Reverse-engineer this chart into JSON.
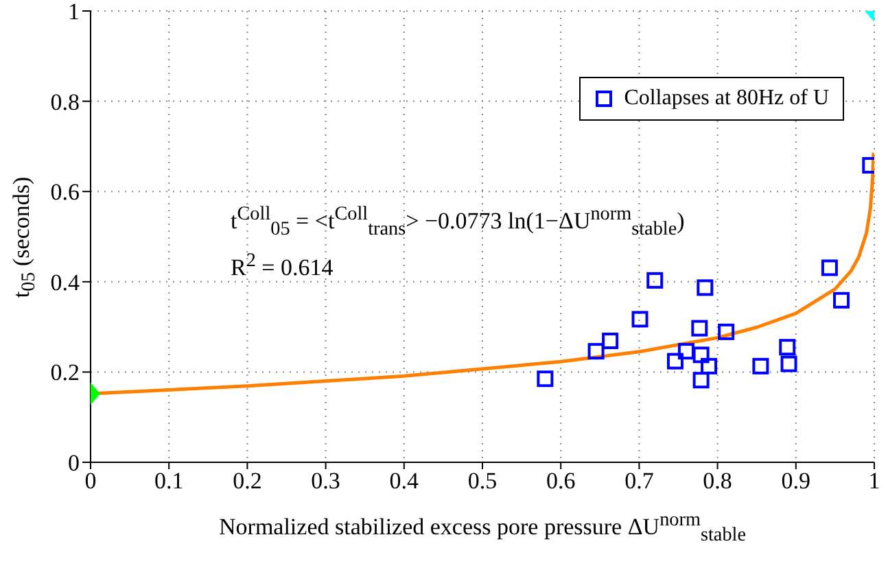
{
  "chart_data": {
    "type": "scatter",
    "xlabel": "Normalized stabilized excess pore pressure ΔU$^{norm}$$_{stable}$",
    "ylabel": "t$_{05}$ (seconds)",
    "annotations": [
      "t$^{Coll}$$_{05}$ = <t$^{Coll}$$_{trans}$> −0.0773 ln(1−ΔU$^{norm}$$_{stable}$)",
      "R$^{2}$ = 0.614"
    ],
    "xlim": [
      0,
      1
    ],
    "ylim": [
      0,
      1
    ],
    "xticks": [
      0,
      0.1,
      0.2,
      0.3,
      0.4,
      0.5,
      0.6,
      0.7,
      0.8,
      0.9,
      1
    ],
    "yticks": [
      0,
      0.2,
      0.4,
      0.6,
      0.8,
      1
    ],
    "grid": true,
    "legend": "top right",
    "series": [
      {
        "name": "Collapses at 80Hz of U",
        "marker": "square",
        "color": "#0000ff",
        "x": [
          0.58,
          0.645,
          0.663,
          0.701,
          0.72,
          0.746,
          0.76,
          0.777,
          0.784,
          0.779,
          0.779,
          0.789,
          0.811,
          0.855,
          0.889,
          0.891,
          0.943,
          0.958,
          0.995
        ],
        "values": [
          0.185,
          0.246,
          0.269,
          0.317,
          0.403,
          0.224,
          0.246,
          0.297,
          0.387,
          0.238,
          0.182,
          0.213,
          0.289,
          0.213,
          0.255,
          0.218,
          0.431,
          0.359,
          0.658
        ]
      },
      {
        "type": "line",
        "marker": "none",
        "color": "#ff7f00",
        "x": [
          0,
          0.2,
          0.4,
          0.6,
          0.7,
          0.8,
          0.85,
          0.9,
          0.95,
          0.97,
          0.98,
          0.99,
          0.995,
          0.998,
          0.999
        ],
        "values": [
          0.152,
          0.169,
          0.191,
          0.223,
          0.245,
          0.276,
          0.299,
          0.33,
          0.384,
          0.423,
          0.454,
          0.508,
          0.562,
          0.632,
          0.686
        ]
      },
      {
        "type": "scatter",
        "marker": "diamond",
        "color": "#00ff00",
        "x": [
          0
        ],
        "values": [
          0.152
        ]
      },
      {
        "type": "scatter",
        "marker": "diamond",
        "color": "#00ffff",
        "x": [
          1
        ],
        "values": [
          1
        ]
      }
    ]
  }
}
